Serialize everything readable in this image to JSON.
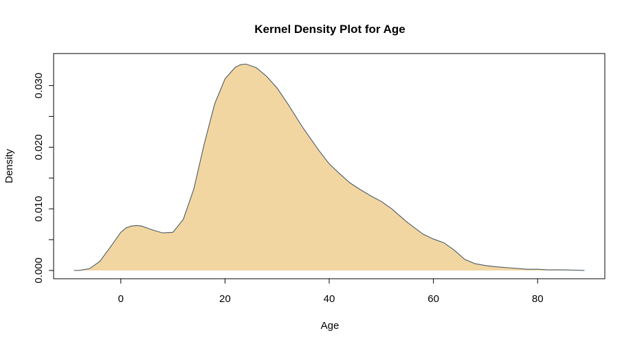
{
  "chart_data": {
    "type": "area",
    "title": "Kernel Density Plot for Age",
    "xlabel": "Age",
    "ylabel": "Density",
    "xlim": [
      -12.9,
      92.9
    ],
    "ylim": [
      -0.00134,
      0.0352
    ],
    "x_ticks": [
      0,
      20,
      40,
      60,
      80
    ],
    "y_ticks": [
      0.0,
      0.005,
      0.01,
      0.015,
      0.02,
      0.025,
      0.03
    ],
    "x_tick_labels": [
      "0",
      "20",
      "40",
      "60",
      "80"
    ],
    "y_tick_labels": [
      "0.000",
      "0.010",
      "0.020",
      "0.030"
    ],
    "y_tick_label_values": [
      0.0,
      0.01,
      0.02,
      0.03
    ],
    "grid": false,
    "fill_color": "#F2D6A2",
    "line_color": "#4A5A66",
    "series": [
      {
        "x": [
          -9,
          -8,
          -6,
          -4,
          -2,
          0,
          1,
          2,
          3,
          4,
          5,
          6,
          8,
          10,
          12,
          14,
          16,
          18,
          20,
          22,
          23,
          24,
          26,
          28,
          30,
          32,
          35,
          38,
          40,
          42,
          44,
          46,
          48,
          50,
          52,
          55,
          58,
          60,
          62,
          64,
          66,
          68,
          70,
          72,
          75,
          78,
          80,
          82,
          85,
          89
        ],
        "y": [
          0.0,
          0.0,
          0.0003,
          0.0015,
          0.0038,
          0.0062,
          0.0069,
          0.0072,
          0.0073,
          0.0072,
          0.0069,
          0.0066,
          0.0061,
          0.0062,
          0.0083,
          0.0132,
          0.0205,
          0.027,
          0.0311,
          0.033,
          0.0334,
          0.0335,
          0.0329,
          0.0315,
          0.0296,
          0.0271,
          0.0231,
          0.0195,
          0.0173,
          0.0157,
          0.0142,
          0.0131,
          0.0121,
          0.0112,
          0.01,
          0.0078,
          0.0059,
          0.0051,
          0.0045,
          0.0033,
          0.0018,
          0.0011,
          0.0008,
          0.0006,
          0.0004,
          0.0002,
          0.0002,
          0.0001,
          0.0001,
          0.0
        ]
      }
    ]
  }
}
